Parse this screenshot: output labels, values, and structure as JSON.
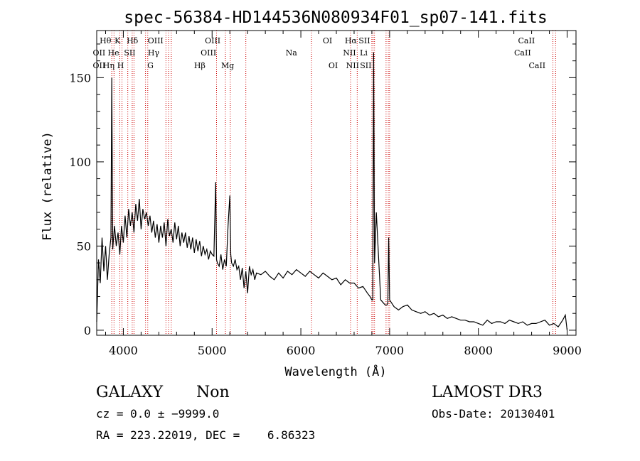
{
  "chart_data": {
    "type": "line",
    "title": "spec-56384-HD144536N080934F01_sp07-141.fits",
    "xlabel": "Wavelength (Å)",
    "ylabel": "Flux (relative)",
    "xlim": [
      3700,
      9100
    ],
    "ylim": [
      -3,
      178
    ],
    "xticks": [
      4000,
      5000,
      6000,
      7000,
      8000,
      9000
    ],
    "yticks": [
      0,
      50,
      100,
      150
    ],
    "grid": false,
    "series": [
      {
        "color": "#000000",
        "x": [
          3700,
          3720,
          3740,
          3760,
          3780,
          3800,
          3820,
          3840,
          3860,
          3870,
          3880,
          3900,
          3920,
          3940,
          3960,
          3980,
          4000,
          4020,
          4040,
          4060,
          4080,
          4100,
          4120,
          4140,
          4160,
          4180,
          4200,
          4220,
          4240,
          4260,
          4280,
          4300,
          4320,
          4340,
          4360,
          4380,
          4400,
          4420,
          4440,
          4460,
          4480,
          4500,
          4520,
          4540,
          4560,
          4580,
          4600,
          4620,
          4640,
          4660,
          4680,
          4700,
          4720,
          4740,
          4760,
          4780,
          4800,
          4820,
          4840,
          4860,
          4880,
          4900,
          4920,
          4940,
          4960,
          4980,
          5000,
          5020,
          5040,
          5050,
          5060,
          5080,
          5100,
          5120,
          5140,
          5160,
          5180,
          5200,
          5210,
          5220,
          5240,
          5260,
          5280,
          5300,
          5320,
          5340,
          5360,
          5380,
          5400,
          5420,
          5440,
          5460,
          5480,
          5500,
          5550,
          5600,
          5650,
          5700,
          5750,
          5800,
          5850,
          5900,
          5950,
          6000,
          6050,
          6100,
          6150,
          6200,
          6250,
          6300,
          6350,
          6400,
          6450,
          6500,
          6550,
          6600,
          6650,
          6700,
          6750,
          6780,
          6800,
          6810,
          6820,
          6830,
          6850,
          6900,
          6950,
          6970,
          6980,
          6990,
          7000,
          7050,
          7100,
          7150,
          7200,
          7250,
          7300,
          7350,
          7400,
          7450,
          7500,
          7550,
          7600,
          7650,
          7700,
          7750,
          7800,
          7850,
          7900,
          7950,
          8000,
          8050,
          8100,
          8150,
          8200,
          8250,
          8300,
          8350,
          8400,
          8450,
          8500,
          8550,
          8600,
          8650,
          8700,
          8750,
          8800,
          8850,
          8900,
          8950,
          8980,
          9000
        ],
        "y": [
          5,
          42,
          28,
          55,
          35,
          50,
          30,
          45,
          55,
          150,
          48,
          62,
          50,
          58,
          45,
          62,
          52,
          68,
          55,
          72,
          62,
          70,
          58,
          75,
          65,
          78,
          60,
          72,
          66,
          70,
          62,
          68,
          58,
          65,
          55,
          63,
          52,
          62,
          55,
          64,
          50,
          66,
          56,
          60,
          52,
          64,
          54,
          62,
          50,
          58,
          52,
          58,
          49,
          56,
          48,
          55,
          46,
          54,
          47,
          53,
          44,
          50,
          45,
          48,
          42,
          47,
          45,
          44,
          88,
          42,
          40,
          38,
          45,
          36,
          42,
          38,
          62,
          80,
          45,
          40,
          38,
          42,
          36,
          38,
          30,
          37,
          25,
          35,
          22,
          38,
          33,
          36,
          30,
          34,
          33,
          35,
          32,
          30,
          34,
          31,
          35,
          33,
          36,
          34,
          32,
          35,
          33,
          31,
          34,
          32,
          30,
          31,
          27,
          30,
          28,
          28,
          25,
          26,
          22,
          20,
          18,
          18,
          165,
          40,
          70,
          18,
          15,
          15,
          16,
          55,
          18,
          14,
          12,
          14,
          15,
          12,
          11,
          10,
          11,
          9,
          10,
          8,
          9,
          7,
          8,
          7,
          6,
          6,
          5,
          5,
          4,
          3,
          6,
          4,
          5,
          5,
          4,
          6,
          5,
          4,
          5,
          3,
          4,
          4,
          5,
          6,
          3,
          4,
          2,
          6,
          9,
          0
        ]
      }
    ],
    "line_labels": [
      {
        "text": "OII",
        "wl": 3727,
        "row": 2
      },
      {
        "text": "OII",
        "wl": 3727,
        "row": 3
      },
      {
        "text": "Hθ",
        "wl": 3798,
        "row": 1
      },
      {
        "text": "He",
        "wl": 3889,
        "row": 2
      },
      {
        "text": "Hη",
        "wl": 3835,
        "row": 3
      },
      {
        "text": "K",
        "wl": 3934,
        "row": 1
      },
      {
        "text": "H",
        "wl": 3969,
        "row": 3
      },
      {
        "text": "Hδ",
        "wl": 4102,
        "row": 1
      },
      {
        "text": "SII",
        "wl": 4072,
        "row": 2
      },
      {
        "text": "OIII",
        "wl": 4363,
        "row": 1
      },
      {
        "text": "Hγ",
        "wl": 4341,
        "row": 2
      },
      {
        "text": "G",
        "wl": 4305,
        "row": 3
      },
      {
        "text": "OIII",
        "wl": 5007,
        "row": 1
      },
      {
        "text": "OIII",
        "wl": 4959,
        "row": 2
      },
      {
        "text": "Hβ",
        "wl": 4861,
        "row": 3
      },
      {
        "text": "Mg",
        "wl": 5175,
        "row": 3
      },
      {
        "text": "Na",
        "wl": 5893,
        "row": 2
      },
      {
        "text": "OI",
        "wl": 6300,
        "row": 1
      },
      {
        "text": "OI",
        "wl": 6364,
        "row": 3
      },
      {
        "text": "Hα",
        "wl": 6563,
        "row": 1
      },
      {
        "text": "SII",
        "wl": 6716,
        "row": 1
      },
      {
        "text": "NII",
        "wl": 6548,
        "row": 2
      },
      {
        "text": "Li",
        "wl": 6708,
        "row": 2
      },
      {
        "text": "NII",
        "wl": 6583,
        "row": 3
      },
      {
        "text": "SII",
        "wl": 6731,
        "row": 3
      },
      {
        "text": "CaII",
        "wl": 8542,
        "row": 1
      },
      {
        "text": "CaII",
        "wl": 8498,
        "row": 2
      },
      {
        "text": "CaII",
        "wl": 8662,
        "row": 3
      }
    ],
    "marker_lines": [
      3870,
      3895,
      3960,
      3985,
      4050,
      4100,
      4120,
      4250,
      4275,
      4480,
      4510,
      4540,
      5050,
      5150,
      5205,
      5380,
      6120,
      6560,
      6635,
      6800,
      6815,
      6830,
      6960,
      6985,
      7000,
      8840,
      8870
    ]
  },
  "info": {
    "class": "GALAXY",
    "subclass": "Non",
    "survey": "LAMOST DR3",
    "cz": "cz = 0.0 ± −9999.0",
    "obs_date": "Obs-Date: 20130401",
    "radec": "RA = 223.22019, DEC =    6.86323"
  },
  "colors": {
    "spectrum": "#000000",
    "marker": "#cc0000"
  }
}
